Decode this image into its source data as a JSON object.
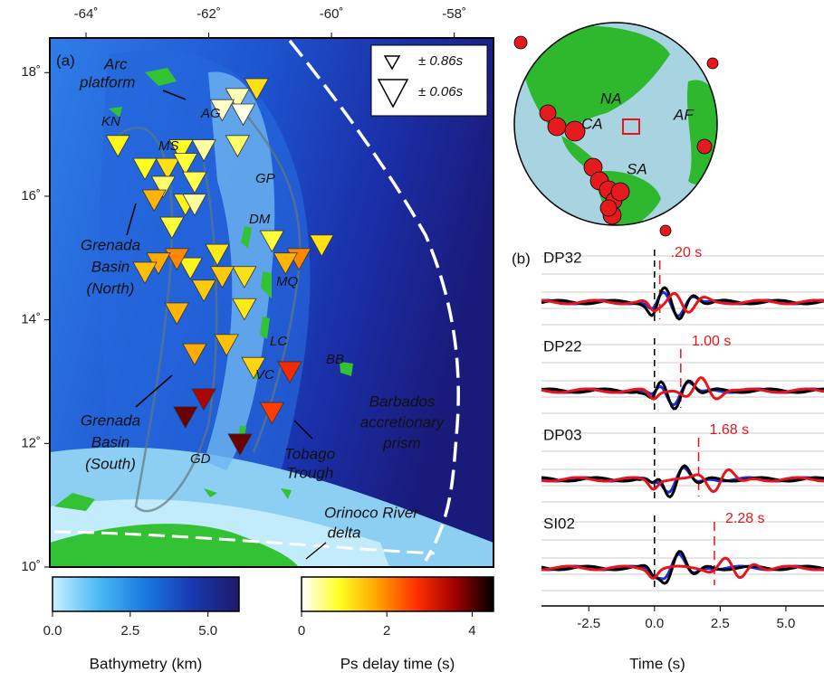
{
  "map": {
    "panel_label": "(a)",
    "xlim": [
      -64.59,
      -57.36
    ],
    "ylim": [
      10,
      18.56
    ],
    "xticks": [
      {
        "value": -64,
        "label": "-64˚"
      },
      {
        "value": -62,
        "label": "-62˚"
      },
      {
        "value": -60,
        "label": "-60˚"
      },
      {
        "value": -58,
        "label": "-58˚"
      }
    ],
    "yticks": [
      {
        "value": 10,
        "label": "10˚"
      },
      {
        "value": 12,
        "label": "12˚"
      },
      {
        "value": 14,
        "label": "14˚"
      },
      {
        "value": 16,
        "label": "16˚"
      },
      {
        "value": 18,
        "label": "18˚"
      }
    ],
    "legend": [
      "± 0.86s",
      "± 0.06s"
    ],
    "labels": {
      "arc_platform": [
        "Arc",
        "platform"
      ],
      "AG": "AG",
      "KN": "KN",
      "MS": "MS",
      "GP": "GP",
      "DM": "DM",
      "MQ": "MQ",
      "LC": "LC",
      "VC": "VC",
      "GD": "GD",
      "BB": "BB",
      "grenada_north": [
        "Grenada",
        "Basin",
        "(North)"
      ],
      "grenada_south": [
        "Grenada",
        "Basin",
        "(South)"
      ],
      "tobago": [
        "Tobago",
        "Trough"
      ],
      "barbados": [
        "Barbados",
        "accretionary",
        "prism"
      ],
      "orinoco": [
        "Orinoco River",
        "delta"
      ]
    },
    "stations": [
      {
        "lon": -61.22,
        "lat": 17.75,
        "delay": 1.2
      },
      {
        "lon": -61.53,
        "lat": 17.59,
        "delay": 0.3
      },
      {
        "lon": -61.44,
        "lat": 17.34,
        "delay": 0.1
      },
      {
        "lon": -61.78,
        "lat": 17.41,
        "delay": 0.2
      },
      {
        "lon": -63.48,
        "lat": 16.83,
        "delay": 1.0
      },
      {
        "lon": -62.08,
        "lat": 16.76,
        "delay": 0.4
      },
      {
        "lon": -62.45,
        "lat": 16.76,
        "delay": 0.9
      },
      {
        "lon": -61.53,
        "lat": 16.83,
        "delay": 0.6
      },
      {
        "lon": -62.67,
        "lat": 16.46,
        "delay": 1.2
      },
      {
        "lon": -62.38,
        "lat": 16.54,
        "delay": 0.8
      },
      {
        "lon": -63.04,
        "lat": 16.46,
        "delay": 0.9
      },
      {
        "lon": -62.23,
        "lat": 16.24,
        "delay": 0.7
      },
      {
        "lon": -62.74,
        "lat": 16.17,
        "delay": 0.6
      },
      {
        "lon": -62.89,
        "lat": 15.95,
        "delay": 1.6
      },
      {
        "lon": -62.38,
        "lat": 15.88,
        "delay": 1.0
      },
      {
        "lon": -62.23,
        "lat": 15.88,
        "delay": 0.4
      },
      {
        "lon": -62.6,
        "lat": 15.51,
        "delay": 0.8
      },
      {
        "lon": -60.97,
        "lat": 15.29,
        "delay": 0.8
      },
      {
        "lon": -60.16,
        "lat": 15.22,
        "delay": 1.2
      },
      {
        "lon": -60.53,
        "lat": 15.0,
        "delay": 2.0
      },
      {
        "lon": -60.75,
        "lat": 14.93,
        "delay": 1.6
      },
      {
        "lon": -61.86,
        "lat": 15.07,
        "delay": 1.1
      },
      {
        "lon": -62.3,
        "lat": 14.85,
        "delay": 1.0
      },
      {
        "lon": -62.52,
        "lat": 15.0,
        "delay": 2.0
      },
      {
        "lon": -62.82,
        "lat": 14.93,
        "delay": 1.7
      },
      {
        "lon": -63.04,
        "lat": 14.78,
        "delay": 1.5
      },
      {
        "lon": -61.42,
        "lat": 14.71,
        "delay": 1.2
      },
      {
        "lon": -61.78,
        "lat": 14.71,
        "delay": 1.4
      },
      {
        "lon": -62.08,
        "lat": 14.49,
        "delay": 1.4
      },
      {
        "lon": -61.42,
        "lat": 14.19,
        "delay": 1.1
      },
      {
        "lon": -62.52,
        "lat": 14.12,
        "delay": 1.6
      },
      {
        "lon": -61.71,
        "lat": 13.61,
        "delay": 1.5
      },
      {
        "lon": -62.23,
        "lat": 13.46,
        "delay": 1.7
      },
      {
        "lon": -61.27,
        "lat": 13.24,
        "delay": 1.3
      },
      {
        "lon": -60.68,
        "lat": 13.17,
        "delay": 2.8
      },
      {
        "lon": -62.08,
        "lat": 12.73,
        "delay": 3.5
      },
      {
        "lon": -62.38,
        "lat": 12.44,
        "delay": 3.9
      },
      {
        "lon": -60.97,
        "lat": 12.51,
        "delay": 2.6
      },
      {
        "lon": -61.49,
        "lat": 12.0,
        "delay": 3.9
      }
    ]
  },
  "colorbars": [
    {
      "label": "Bathymetry (km)",
      "lim": [
        0,
        6
      ],
      "colors": [
        "#c8f0ff",
        "#4ab8f5",
        "#1878e0",
        "#1838b0",
        "#201868"
      ],
      "ticks": [
        {
          "value": 0,
          "label": "0.0"
        },
        2.5,
        {
          "value": 5,
          "label": "5.0"
        }
      ]
    },
    {
      "label": "Ps delay time (s)",
      "lim": [
        0,
        4.5
      ],
      "colors": [
        "#ffffff",
        "#ffff20",
        "#ffa000",
        "#ff3000",
        "#a00000",
        "#000000"
      ],
      "ticks": [
        0,
        2,
        4
      ]
    }
  ],
  "globe": {
    "labels": [
      "NA",
      "CA",
      "SA",
      "AF"
    ]
  },
  "waveforms": {
    "panel_label": "(b)",
    "xlabel": "Time (s)",
    "xlim": [
      -4.3,
      6.45
    ],
    "xticks": [
      -2.5,
      {
        "value": 0,
        "label": "0.0"
      },
      2.5,
      {
        "value": 5,
        "label": "5.0"
      }
    ],
    "traces": [
      {
        "name": "DP32",
        "delay": {
          "value": 0.2,
          "label": ".20 s"
        }
      },
      {
        "name": "DP22",
        "delay": {
          "value": 1.0,
          "label": "1.00 s"
        }
      },
      {
        "name": "DP03",
        "delay": {
          "value": 1.68,
          "label": "1.68 s"
        }
      },
      {
        "name": "SI02",
        "delay": {
          "value": 2.28,
          "label": "2.28 s"
        }
      }
    ]
  }
}
